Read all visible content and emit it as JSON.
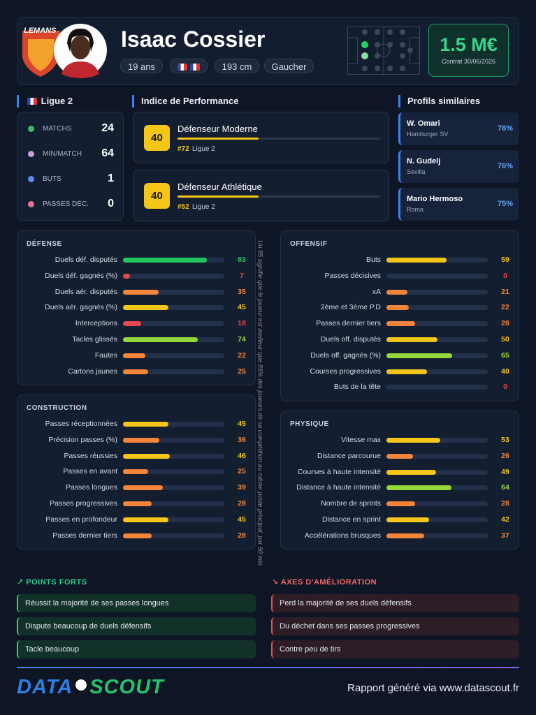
{
  "header": {
    "club_logo": "LEMANS",
    "name": "Isaac Cossier",
    "tags": [
      "19 ans",
      "193 cm",
      "Gaucher"
    ],
    "market_value": "1.5 M€",
    "contract": "Contrat 30/06/2026"
  },
  "league": {
    "title": "Ligue 2",
    "stats": [
      {
        "label": "MATCHS",
        "value": 24
      },
      {
        "label": "MIN/MATCH",
        "value": 64
      },
      {
        "label": "BUTS",
        "value": 1
      },
      {
        "label": "PASSES DÉC.",
        "value": 0
      }
    ]
  },
  "performance": {
    "title": "Indice de Performance",
    "indices": [
      {
        "score": 40,
        "name": "Défenseur Moderne",
        "rank": "#72",
        "league": "Ligue 2"
      },
      {
        "score": 40,
        "name": "Défenseur Athlétique",
        "rank": "#52",
        "league": "Ligue 2"
      }
    ]
  },
  "similar": {
    "title": "Profils similaires",
    "players": [
      {
        "name": "W. Omari",
        "club": "Hamburger SV",
        "similarity": "78%"
      },
      {
        "name": "N. Gudelj",
        "club": "Sevilla",
        "similarity": "76%"
      },
      {
        "name": "Mario Hermoso",
        "club": "Roma",
        "similarity": "75%"
      }
    ]
  },
  "sections": [
    {
      "title": "DÉFENSE",
      "metrics": [
        {
          "label": "Duels déf. disputés",
          "value": 83
        },
        {
          "label": "Duels déf. gagnés (%)",
          "value": 7
        },
        {
          "label": "Duels aér. disputés",
          "value": 35
        },
        {
          "label": "Duels aér. gagnés (%)",
          "value": 45
        },
        {
          "label": "Interceptions",
          "value": 18
        },
        {
          "label": "Tacles glissés",
          "value": 74
        },
        {
          "label": "Fautes",
          "value": 22
        },
        {
          "label": "Cartons jaunes",
          "value": 25
        }
      ]
    },
    {
      "title": "OFFENSIF",
      "metrics": [
        {
          "label": "Buts",
          "value": 59
        },
        {
          "label": "Passes décisives",
          "value": 0
        },
        {
          "label": "xA",
          "value": 21
        },
        {
          "label": "2ème et 3ème P.D",
          "value": 22
        },
        {
          "label": "Passes dernier tiers",
          "value": 28
        },
        {
          "label": "Duels off. disputés",
          "value": 50
        },
        {
          "label": "Duels off. gagnés (%)",
          "value": 65
        },
        {
          "label": "Courses progressives",
          "value": 40
        },
        {
          "label": "Buts de la tête",
          "value": 0
        }
      ]
    },
    {
      "title": "CONSTRUCTION",
      "metrics": [
        {
          "label": "Passes réceptionnées",
          "value": 45
        },
        {
          "label": "Précision passes (%)",
          "value": 36
        },
        {
          "label": "Passes réussies",
          "value": 46
        },
        {
          "label": "Passes en avant",
          "value": 25
        },
        {
          "label": "Passes longues",
          "value": 39
        },
        {
          "label": "Passes progressives",
          "value": 28
        },
        {
          "label": "Passes en profondeur",
          "value": 45
        },
        {
          "label": "Passes dernier tiers",
          "value": 28
        }
      ]
    },
    {
      "title": "PHYSIQUE",
      "metrics": [
        {
          "label": "Vitesse max",
          "value": 53
        },
        {
          "label": "Distance parcourue",
          "value": 26
        },
        {
          "label": "Courses à haute intensité",
          "value": 49
        },
        {
          "label": "Distance à haute intensité",
          "value": 64
        },
        {
          "label": "Nombre de sprints",
          "value": 28
        },
        {
          "label": "Distance en sprint",
          "value": 42
        },
        {
          "label": "Accélérations brusques",
          "value": 37
        }
      ]
    }
  ],
  "note": "Un 85 signifie que le joueur est meilleur que 85% des joueurs de sa compétition au même poste principal, par 90 min",
  "strengths": {
    "title": "POINTS FORTS",
    "items": [
      "Réussit la majorité de ses passes longues",
      "Dispute beaucoup de duels défensifs",
      "Tacle beaucoup"
    ]
  },
  "improvements": {
    "title": "AXES D'AMÉLIORATION",
    "items": [
      "Perd la majorité de ses duels défensifs",
      "Du déchet dans ses passes progressives",
      "Contre peu de tirs"
    ]
  },
  "footer": {
    "logo": [
      "DATA",
      "SCOUT"
    ],
    "text": "Rapport généré via www.datascout.fr"
  }
}
